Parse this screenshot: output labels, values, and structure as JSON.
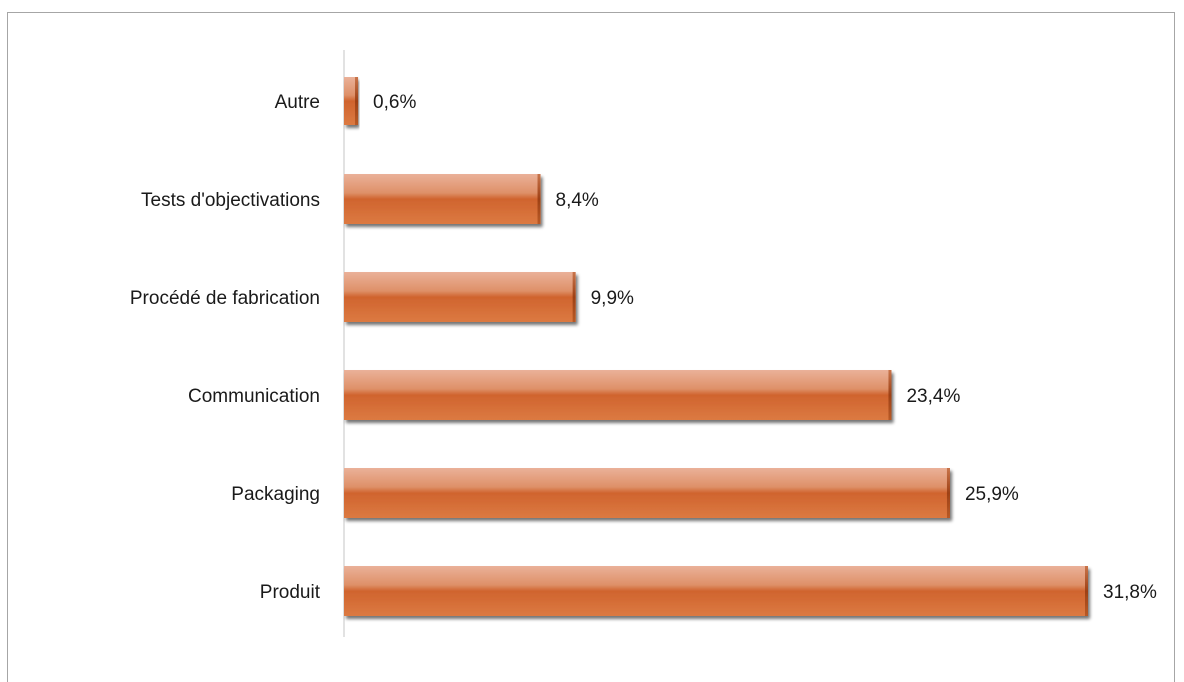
{
  "chart_data": {
    "type": "bar",
    "orientation": "horizontal",
    "title": "",
    "xlabel": "",
    "ylabel": "",
    "categories": [
      "Autre",
      "Tests d'objectivations",
      "Procédé de fabrication",
      "Communication",
      "Packaging",
      "Produit"
    ],
    "values": [
      0.6,
      8.4,
      9.9,
      23.4,
      25.9,
      31.8
    ],
    "value_labels": [
      "0,6%",
      "8,4%",
      "9,9%",
      "23,4%",
      "25,9%",
      "31,8%"
    ],
    "unit": "%",
    "xlim": [
      0,
      31.8
    ],
    "grid": false,
    "legend": "none",
    "colors": {
      "bar_light": "#e8a585",
      "bar_mid": "#d8703d",
      "bar_dark": "#c05018",
      "axis": "#d9d9d9",
      "text": "#1a1a1a",
      "frame": "#a6a6a6"
    }
  }
}
